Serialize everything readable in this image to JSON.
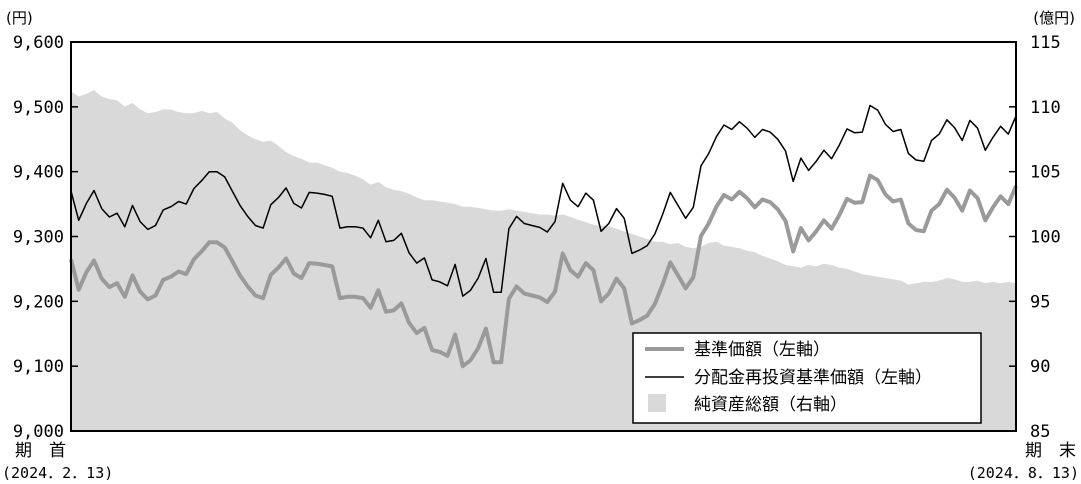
{
  "chart_data": {
    "type": "line",
    "left_axis": {
      "unit": "(円)",
      "min": 9000,
      "max": 9600,
      "ticks": [
        {
          "v": 9000,
          "label": "9,000"
        },
        {
          "v": 9100,
          "label": "9,100"
        },
        {
          "v": 9200,
          "label": "9,200"
        },
        {
          "v": 9300,
          "label": "9,300"
        },
        {
          "v": 9400,
          "label": "9,400"
        },
        {
          "v": 9500,
          "label": "9,500"
        },
        {
          "v": 9600,
          "label": "9,600"
        }
      ]
    },
    "right_axis": {
      "unit": "(億円)",
      "min": 85,
      "max": 115,
      "ticks": [
        {
          "v": 85,
          "label": "85"
        },
        {
          "v": 90,
          "label": "90"
        },
        {
          "v": 95,
          "label": "95"
        },
        {
          "v": 100,
          "label": "100"
        },
        {
          "v": 105,
          "label": "105"
        },
        {
          "v": 110,
          "label": "110"
        },
        {
          "v": 115,
          "label": "115"
        }
      ]
    },
    "x_start": {
      "label": "期　首",
      "date": "(2024．2．13)"
    },
    "x_end": {
      "label": "期　末",
      "date": "(2024．8．13)"
    },
    "x": [
      "2024-02-13",
      "2024-02-14",
      "2024-02-15",
      "2024-02-16",
      "2024-02-19",
      "2024-02-20",
      "2024-02-21",
      "2024-02-22",
      "2024-02-26",
      "2024-02-27",
      "2024-02-28",
      "2024-02-29",
      "2024-03-01",
      "2024-03-04",
      "2024-03-05",
      "2024-03-06",
      "2024-03-07",
      "2024-03-08",
      "2024-03-11",
      "2024-03-12",
      "2024-03-13",
      "2024-03-14",
      "2024-03-15",
      "2024-03-18",
      "2024-03-19",
      "2024-03-21",
      "2024-03-22",
      "2024-03-25",
      "2024-03-26",
      "2024-03-27",
      "2024-03-28",
      "2024-03-29",
      "2024-04-01",
      "2024-04-02",
      "2024-04-03",
      "2024-04-04",
      "2024-04-05",
      "2024-04-08",
      "2024-04-09",
      "2024-04-10",
      "2024-04-11",
      "2024-04-12",
      "2024-04-15",
      "2024-04-16",
      "2024-04-17",
      "2024-04-18",
      "2024-04-19",
      "2024-04-22",
      "2024-04-23",
      "2024-04-24",
      "2024-04-25",
      "2024-04-26",
      "2024-04-30",
      "2024-05-01",
      "2024-05-02",
      "2024-05-07",
      "2024-05-08",
      "2024-05-09",
      "2024-05-10",
      "2024-05-13",
      "2024-05-14",
      "2024-05-15",
      "2024-05-16",
      "2024-05-17",
      "2024-05-20",
      "2024-05-21",
      "2024-05-22",
      "2024-05-23",
      "2024-05-24",
      "2024-05-27",
      "2024-05-28",
      "2024-05-29",
      "2024-05-30",
      "2024-05-31",
      "2024-06-03",
      "2024-06-04",
      "2024-06-05",
      "2024-06-06",
      "2024-06-07",
      "2024-06-10",
      "2024-06-11",
      "2024-06-12",
      "2024-06-13",
      "2024-06-14",
      "2024-06-17",
      "2024-06-18",
      "2024-06-19",
      "2024-06-20",
      "2024-06-21",
      "2024-06-24",
      "2024-06-25",
      "2024-06-26",
      "2024-06-27",
      "2024-06-28",
      "2024-07-01",
      "2024-07-02",
      "2024-07-03",
      "2024-07-04",
      "2024-07-05",
      "2024-07-08",
      "2024-07-09",
      "2024-07-10",
      "2024-07-11",
      "2024-07-12",
      "2024-07-16",
      "2024-07-17",
      "2024-07-18",
      "2024-07-19",
      "2024-07-22",
      "2024-07-23",
      "2024-07-24",
      "2024-07-25",
      "2024-07-26",
      "2024-07-29",
      "2024-07-30",
      "2024-07-31",
      "2024-08-01",
      "2024-08-02",
      "2024-08-05",
      "2024-08-06",
      "2024-08-07",
      "2024-08-08",
      "2024-08-09",
      "2024-08-13"
    ],
    "series": [
      {
        "name": "基準価額（左軸）",
        "axis": "left",
        "kind": "line",
        "color": "#9a9a9a",
        "values": [
          9265,
          9218,
          9245,
          9263,
          9235,
          9222,
          9228,
          9207,
          9240,
          9215,
          9203,
          9209,
          9233,
          9238,
          9246,
          9242,
          9265,
          9277,
          9291,
          9291,
          9283,
          9262,
          9240,
          9223,
          9209,
          9205,
          9241,
          9252,
          9266,
          9243,
          9236,
          9259,
          9258,
          9256,
          9254,
          9205,
          9207,
          9207,
          9205,
          9190,
          9217,
          9184,
          9186,
          9197,
          9167,
          9151,
          9159,
          9125,
          9122,
          9116,
          9149,
          9100,
          9109,
          9128,
          9158,
          9106,
          9106,
          9204,
          9223,
          9212,
          9209,
          9206,
          9199,
          9215,
          9274,
          9248,
          9238,
          9259,
          9248,
          9200,
          9212,
          9235,
          9220,
          9166,
          9171,
          9178,
          9196,
          9226,
          9260,
          9240,
          9220,
          9237,
          9301,
          9320,
          9346,
          9364,
          9357,
          9369,
          9359,
          9345,
          9357,
          9353,
          9342,
          9324,
          9277,
          9313,
          9294,
          9308,
          9325,
          9312,
          9333,
          9358,
          9352,
          9353,
          9394,
          9387,
          9365,
          9354,
          9357,
          9320,
          9310,
          9308,
          9340,
          9350,
          9372,
          9360,
          9340,
          9371,
          9359,
          9325,
          9345,
          9362,
          9350,
          9378
        ]
      },
      {
        "name": "分配金再投資基準価額（左軸）",
        "axis": "left",
        "kind": "line",
        "color": "#000000",
        "values": [
          9370,
          9325,
          9351,
          9371,
          9343,
          9330,
          9336,
          9315,
          9348,
          9323,
          9311,
          9317,
          9341,
          9346,
          9354,
          9350,
          9374,
          9386,
          9400,
          9400,
          9392,
          9370,
          9348,
          9331,
          9317,
          9313,
          9349,
          9360,
          9375,
          9351,
          9344,
          9368,
          9367,
          9365,
          9362,
          9313,
          9315,
          9315,
          9313,
          9298,
          9325,
          9292,
          9294,
          9305,
          9275,
          9259,
          9267,
          9233,
          9230,
          9224,
          9257,
          9208,
          9217,
          9236,
          9266,
          9214,
          9214,
          9312,
          9331,
          9320,
          9317,
          9314,
          9307,
          9323,
          9382,
          9356,
          9346,
          9367,
          9356,
          9308,
          9320,
          9343,
          9328,
          9274,
          9279,
          9286,
          9304,
          9334,
          9368,
          9348,
          9328,
          9345,
          9409,
          9428,
          9454,
          9472,
          9465,
          9477,
          9467,
          9453,
          9465,
          9461,
          9450,
          9432,
          9385,
          9421,
          9402,
          9416,
          9433,
          9420,
          9441,
          9466,
          9460,
          9461,
          9502,
          9495,
          9473,
          9462,
          9465,
          9428,
          9418,
          9416,
          9448,
          9458,
          9480,
          9468,
          9448,
          9479,
          9467,
          9433,
          9453,
          9470,
          9458,
          9486
        ]
      },
      {
        "name": "純資産総額（右軸）",
        "axis": "right",
        "kind": "area",
        "color": "#d9d9d9",
        "values": [
          111.2,
          110.8,
          111.0,
          111.3,
          110.8,
          110.6,
          110.5,
          110.0,
          110.3,
          109.8,
          109.5,
          109.6,
          109.8,
          109.8,
          109.6,
          109.5,
          109.5,
          109.7,
          109.5,
          109.6,
          109.1,
          108.8,
          108.2,
          107.8,
          107.5,
          107.3,
          107.4,
          107.0,
          106.5,
          106.2,
          106.0,
          105.7,
          105.7,
          105.5,
          105.3,
          105.0,
          104.9,
          104.7,
          104.4,
          104.0,
          104.2,
          103.8,
          103.6,
          103.5,
          103.3,
          103.0,
          102.8,
          102.8,
          102.7,
          102.6,
          102.5,
          102.3,
          102.3,
          102.2,
          102.1,
          102.0,
          102.0,
          102.1,
          102.0,
          101.9,
          101.8,
          101.7,
          101.7,
          101.6,
          101.7,
          101.5,
          101.3,
          101.1,
          100.9,
          100.8,
          100.8,
          100.6,
          100.4,
          100.2,
          100.0,
          99.8,
          99.6,
          99.6,
          99.4,
          99.5,
          99.2,
          99.1,
          99.2,
          99.5,
          99.6,
          99.3,
          99.2,
          99.1,
          98.9,
          98.8,
          98.5,
          98.3,
          98.1,
          97.8,
          97.7,
          97.6,
          97.8,
          97.7,
          97.9,
          97.8,
          97.6,
          97.5,
          97.3,
          97.1,
          97.0,
          96.9,
          96.8,
          96.7,
          96.6,
          96.3,
          96.4,
          96.5,
          96.5,
          96.6,
          96.8,
          96.7,
          96.5,
          96.5,
          96.6,
          96.4,
          96.5,
          96.4,
          96.5,
          96.4
        ]
      }
    ]
  }
}
